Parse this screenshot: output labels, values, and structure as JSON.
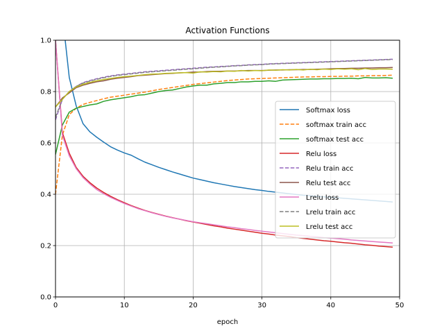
{
  "chart_data": {
    "type": "line",
    "title": "Activation Functions",
    "xlabel": "epoch",
    "ylabel": "",
    "xlim": [
      0,
      50
    ],
    "ylim": [
      0,
      1
    ],
    "xticks": [
      "0",
      "10",
      "20",
      "30",
      "40",
      "50"
    ],
    "yticks": [
      "0.0",
      "0.2",
      "0.4",
      "0.6",
      "0.8",
      "1.0"
    ],
    "grid": true,
    "legend_position": "center-right",
    "x": [
      0,
      1,
      2,
      3,
      4,
      5,
      6,
      7,
      8,
      9,
      10,
      11,
      12,
      13,
      14,
      15,
      16,
      17,
      18,
      19,
      20,
      21,
      22,
      23,
      24,
      25,
      26,
      27,
      28,
      29,
      30,
      31,
      32,
      33,
      34,
      35,
      36,
      37,
      38,
      39,
      40,
      41,
      42,
      43,
      44,
      45,
      46,
      47,
      48,
      49
    ],
    "series": [
      {
        "name": "Softmax loss",
        "color": "#1f77b4",
        "dash": "solid",
        "values": [
          1.3,
          1.1,
          0.855,
          0.745,
          0.675,
          0.643,
          0.622,
          0.603,
          0.585,
          0.572,
          0.561,
          0.552,
          0.538,
          0.525,
          0.515,
          0.505,
          0.496,
          0.487,
          0.479,
          0.471,
          0.463,
          0.457,
          0.451,
          0.445,
          0.44,
          0.435,
          0.43,
          0.426,
          0.422,
          0.418,
          0.415,
          0.411,
          0.408,
          0.405,
          0.402,
          0.399,
          0.396,
          0.394,
          0.392,
          0.39,
          0.388,
          0.386,
          0.384,
          0.382,
          0.38,
          0.378,
          0.376,
          0.374,
          0.372,
          0.37
        ]
      },
      {
        "name": "softmax train acc",
        "color": "#ff7f0e",
        "dash": "dashed",
        "values": [
          0.4,
          0.63,
          0.71,
          0.735,
          0.75,
          0.758,
          0.765,
          0.772,
          0.778,
          0.782,
          0.786,
          0.79,
          0.794,
          0.798,
          0.803,
          0.808,
          0.812,
          0.816,
          0.82,
          0.824,
          0.828,
          0.831,
          0.834,
          0.837,
          0.84,
          0.843,
          0.845,
          0.847,
          0.849,
          0.85,
          0.851,
          0.852,
          0.853,
          0.854,
          0.855,
          0.856,
          0.857,
          0.857,
          0.858,
          0.858,
          0.859,
          0.859,
          0.86,
          0.86,
          0.861,
          0.861,
          0.862,
          0.862,
          0.863,
          0.864
        ]
      },
      {
        "name": "softmax test acc",
        "color": "#2ca02c",
        "dash": "solid",
        "values": [
          0.555,
          0.67,
          0.72,
          0.735,
          0.742,
          0.748,
          0.752,
          0.762,
          0.768,
          0.772,
          0.776,
          0.78,
          0.786,
          0.788,
          0.794,
          0.8,
          0.804,
          0.806,
          0.812,
          0.818,
          0.822,
          0.825,
          0.825,
          0.83,
          0.832,
          0.835,
          0.835,
          0.838,
          0.838,
          0.84,
          0.84,
          0.842,
          0.84,
          0.845,
          0.846,
          0.847,
          0.848,
          0.849,
          0.849,
          0.85,
          0.85,
          0.851,
          0.851,
          0.852,
          0.85,
          0.855,
          0.853,
          0.853,
          0.854,
          0.852
        ]
      },
      {
        "name": "Relu loss",
        "color": "#d62728",
        "dash": "solid",
        "values": [
          1.0,
          0.64,
          0.56,
          0.505,
          0.47,
          0.445,
          0.424,
          0.407,
          0.392,
          0.379,
          0.367,
          0.356,
          0.346,
          0.337,
          0.329,
          0.322,
          0.315,
          0.309,
          0.303,
          0.297,
          0.292,
          0.287,
          0.282,
          0.277,
          0.273,
          0.268,
          0.264,
          0.26,
          0.256,
          0.252,
          0.248,
          0.245,
          0.241,
          0.238,
          0.235,
          0.231,
          0.228,
          0.225,
          0.222,
          0.219,
          0.217,
          0.214,
          0.211,
          0.209,
          0.206,
          0.203,
          0.201,
          0.198,
          0.196,
          0.194
        ]
      },
      {
        "name": "Relu train acc",
        "color": "#9467bd",
        "dash": "dashed",
        "values": [
          0.69,
          0.77,
          0.8,
          0.82,
          0.835,
          0.843,
          0.85,
          0.856,
          0.861,
          0.865,
          0.868,
          0.871,
          0.874,
          0.877,
          0.879,
          0.881,
          0.883,
          0.885,
          0.887,
          0.889,
          0.891,
          0.893,
          0.895,
          0.896,
          0.898,
          0.899,
          0.901,
          0.902,
          0.904,
          0.905,
          0.906,
          0.908,
          0.909,
          0.91,
          0.911,
          0.912,
          0.913,
          0.914,
          0.915,
          0.916,
          0.917,
          0.918,
          0.919,
          0.92,
          0.921,
          0.922,
          0.923,
          0.924,
          0.925,
          0.926
        ]
      },
      {
        "name": "Relu test acc",
        "color": "#8c564b",
        "dash": "solid",
        "values": [
          0.74,
          0.775,
          0.795,
          0.815,
          0.825,
          0.832,
          0.838,
          0.842,
          0.848,
          0.852,
          0.855,
          0.858,
          0.862,
          0.864,
          0.866,
          0.868,
          0.87,
          0.871,
          0.873,
          0.874,
          0.876,
          0.876,
          0.878,
          0.879,
          0.879,
          0.88,
          0.88,
          0.881,
          0.882,
          0.882,
          0.882,
          0.883,
          0.884,
          0.884,
          0.885,
          0.885,
          0.886,
          0.886,
          0.887,
          0.888,
          0.889,
          0.89,
          0.89,
          0.891,
          0.891,
          0.892,
          0.892,
          0.893,
          0.893,
          0.894
        ]
      },
      {
        "name": "Lrelu loss",
        "color": "#e377c2",
        "dash": "solid",
        "values": [
          1.0,
          0.63,
          0.55,
          0.5,
          0.465,
          0.44,
          0.418,
          0.402,
          0.388,
          0.376,
          0.364,
          0.354,
          0.344,
          0.336,
          0.328,
          0.321,
          0.314,
          0.308,
          0.303,
          0.298,
          0.293,
          0.289,
          0.285,
          0.281,
          0.277,
          0.273,
          0.27,
          0.266,
          0.263,
          0.259,
          0.256,
          0.253,
          0.25,
          0.247,
          0.244,
          0.241,
          0.239,
          0.236,
          0.234,
          0.231,
          0.229,
          0.227,
          0.225,
          0.222,
          0.22,
          0.218,
          0.216,
          0.214,
          0.212,
          0.21
        ]
      },
      {
        "name": "Lrelu train acc",
        "color": "#7f7f7f",
        "dash": "dashed",
        "values": [
          0.7,
          0.77,
          0.8,
          0.82,
          0.833,
          0.841,
          0.848,
          0.854,
          0.859,
          0.863,
          0.866,
          0.869,
          0.872,
          0.875,
          0.877,
          0.879,
          0.881,
          0.883,
          0.885,
          0.887,
          0.889,
          0.891,
          0.893,
          0.895,
          0.896,
          0.898,
          0.9,
          0.901,
          0.903,
          0.904,
          0.905,
          0.907,
          0.908,
          0.909,
          0.91,
          0.911,
          0.912,
          0.913,
          0.914,
          0.915,
          0.916,
          0.917,
          0.918,
          0.919,
          0.92,
          0.921,
          0.922,
          0.923,
          0.924,
          0.925
        ]
      },
      {
        "name": "Lrelu test acc",
        "color": "#bcbd22",
        "dash": "solid",
        "values": [
          0.74,
          0.77,
          0.8,
          0.818,
          0.828,
          0.836,
          0.842,
          0.847,
          0.851,
          0.855,
          0.858,
          0.86,
          0.863,
          0.866,
          0.868,
          0.869,
          0.871,
          0.872,
          0.873,
          0.874,
          0.872,
          0.877,
          0.876,
          0.878,
          0.877,
          0.88,
          0.879,
          0.882,
          0.88,
          0.882,
          0.881,
          0.884,
          0.883,
          0.885,
          0.884,
          0.886,
          0.884,
          0.887,
          0.885,
          0.888,
          0.886,
          0.889,
          0.887,
          0.889,
          0.885,
          0.89,
          0.886,
          0.888,
          0.888,
          0.887
        ]
      }
    ]
  }
}
